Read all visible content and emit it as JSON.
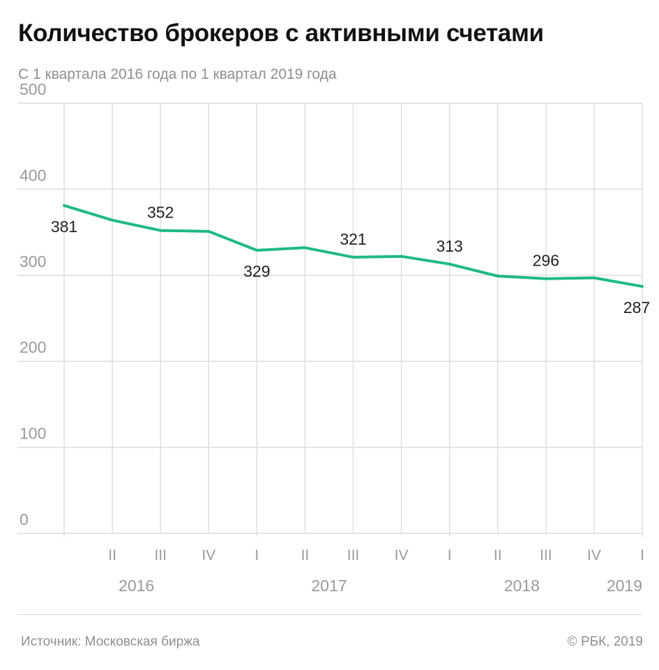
{
  "title": "Количество брокеров с активными счетами",
  "subtitle": "С 1 квартала 2016 года по 1 квартал 2019 года",
  "footer": {
    "source": "Источник: Московская биржа",
    "copyright": "© РБК, 2019"
  },
  "colors": {
    "line": "#1fb985",
    "grid": "#dedede",
    "axis_text": "#9a9a9a",
    "label_text": "#222222"
  },
  "chart_data": {
    "type": "line",
    "xlabel": "",
    "ylabel": "",
    "ylim": [
      0,
      500
    ],
    "yticks": [
      0,
      100,
      200,
      300,
      400,
      500
    ],
    "grid": true,
    "quarters": [
      "I",
      "II",
      "III",
      "IV",
      "I",
      "II",
      "III",
      "IV",
      "I",
      "II",
      "III",
      "IV",
      "I"
    ],
    "year_labels": [
      {
        "year": "2016",
        "quarter_index": 1.5
      },
      {
        "year": "2017",
        "quarter_index": 5.5
      },
      {
        "year": "2018",
        "quarter_index": 9.5
      },
      {
        "year": "2019",
        "quarter_index": 12
      }
    ],
    "year_starts": [
      4,
      8
    ],
    "series": [
      {
        "values": [
          381,
          364,
          352,
          351,
          329,
          332,
          321,
          322,
          313,
          299,
          296,
          297,
          287
        ]
      }
    ],
    "data_labels": [
      {
        "index": 0,
        "text": "381",
        "position": "below"
      },
      {
        "index": 2,
        "text": "352",
        "position": "above"
      },
      {
        "index": 4,
        "text": "329",
        "position": "below"
      },
      {
        "index": 6,
        "text": "321",
        "position": "above"
      },
      {
        "index": 8,
        "text": "313",
        "position": "above"
      },
      {
        "index": 10,
        "text": "296",
        "position": "above"
      },
      {
        "index": 12,
        "text": "287",
        "position": "below"
      }
    ]
  }
}
